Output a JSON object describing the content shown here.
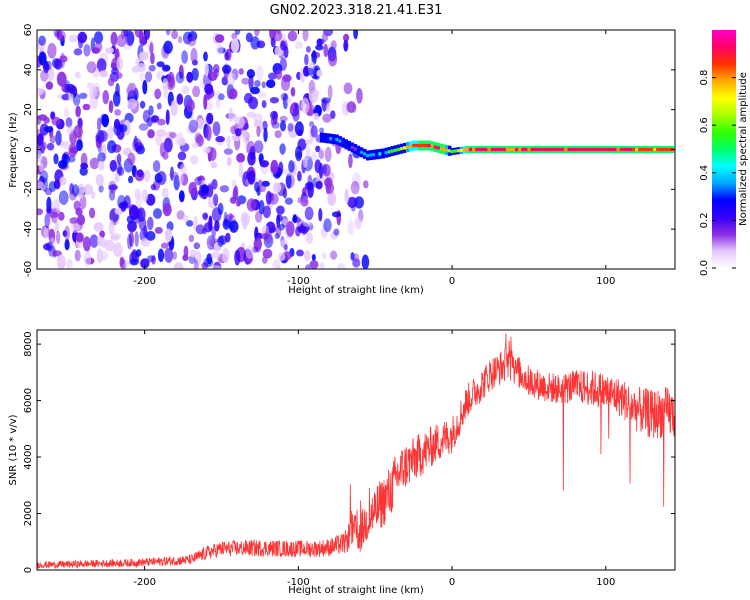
{
  "figure_title": "GN02.2023.318.21.41.E31",
  "chart_data": [
    {
      "type": "heatmap",
      "title": "GN02.2023.318.21.41.E31",
      "xlabel": "Height of straight line (km)",
      "ylabel": "Frequency (Hz)",
      "xlim": [
        -270,
        145
      ],
      "ylim": [
        -60,
        60
      ],
      "x_ticks": [
        -200,
        -100,
        0,
        100
      ],
      "y_ticks": [
        -60,
        -40,
        -20,
        0,
        20,
        40,
        60
      ],
      "colorbar": {
        "label": "Normalized spectral amplitude",
        "range": [
          0,
          1
        ],
        "ticks": [
          0.0,
          0.2,
          0.4,
          0.6,
          0.8
        ],
        "colors": [
          "#ffffff",
          "#e6c8ff",
          "#8a2be2",
          "#3300ff",
          "#0000ff",
          "#00aaff",
          "#00ffff",
          "#00ff66",
          "#33ff00",
          "#aaff00",
          "#ffff00",
          "#ffaa00",
          "#ff3300",
          "#ff0066",
          "#ff00cc"
        ]
      },
      "noise_region": {
        "x": [
          -270,
          -75
        ],
        "y": [
          -60,
          60
        ],
        "amplitude": [
          0.05,
          0.3
        ]
      },
      "signal_track": [
        {
          "x": -85,
          "y": 6,
          "amplitude": 0.3
        },
        {
          "x": -75,
          "y": 5,
          "amplitude": 0.35
        },
        {
          "x": -65,
          "y": 1,
          "amplitude": 0.3
        },
        {
          "x": -55,
          "y": -3,
          "amplitude": 0.35
        },
        {
          "x": -45,
          "y": -2,
          "amplitude": 0.45
        },
        {
          "x": -35,
          "y": 0,
          "amplitude": 0.6
        },
        {
          "x": -25,
          "y": 2,
          "amplitude": 0.85
        },
        {
          "x": -15,
          "y": 2,
          "amplitude": 0.9
        },
        {
          "x": -5,
          "y": 0,
          "amplitude": 0.9
        },
        {
          "x": 0,
          "y": -1,
          "amplitude": 0.5
        },
        {
          "x": 10,
          "y": 0,
          "amplitude": 0.9
        },
        {
          "x": 30,
          "y": 0,
          "amplitude": 0.92
        },
        {
          "x": 50,
          "y": 0,
          "amplitude": 0.92
        },
        {
          "x": 70,
          "y": 0,
          "amplitude": 0.9
        },
        {
          "x": 90,
          "y": 0,
          "amplitude": 0.9
        },
        {
          "x": 110,
          "y": 0,
          "amplitude": 0.9
        },
        {
          "x": 130,
          "y": 0,
          "amplitude": 0.88
        },
        {
          "x": 145,
          "y": 0,
          "amplitude": 0.88
        }
      ]
    },
    {
      "type": "line",
      "xlabel": "Height of straight line (km)",
      "ylabel": "SNR (10 * v/v)",
      "xlim": [
        -270,
        145
      ],
      "ylim": [
        0,
        8500
      ],
      "x_ticks": [
        -200,
        -100,
        0,
        100
      ],
      "y_ticks": [
        0,
        2000,
        4000,
        6000,
        8000
      ],
      "color": "#ff3333",
      "series": [
        {
          "x": [
            -270,
            -250,
            -230,
            -210,
            -190,
            -170,
            -160,
            -150,
            -130,
            -110,
            -90,
            -80,
            -70,
            -65,
            -60,
            -55,
            -50,
            -45,
            -40,
            -35,
            -30,
            -25,
            -20,
            -15,
            -10,
            -5,
            0,
            5,
            10,
            15,
            20,
            25,
            30,
            35,
            40,
            50,
            60,
            70,
            80,
            90,
            100,
            110,
            120,
            130,
            140,
            145
          ],
          "y": [
            180,
            200,
            230,
            250,
            300,
            360,
            600,
            750,
            780,
            760,
            750,
            800,
            950,
            1400,
            1250,
            1800,
            2100,
            2400,
            2800,
            3400,
            3700,
            3900,
            4100,
            4300,
            4500,
            4650,
            4800,
            5400,
            6000,
            6300,
            6600,
            6950,
            7100,
            7300,
            7150,
            6700,
            6500,
            6400,
            6500,
            6450,
            6300,
            6100,
            5700,
            5500,
            5600,
            5500
          ],
          "spread": [
            120,
            130,
            130,
            140,
            160,
            180,
            250,
            280,
            300,
            300,
            300,
            320,
            400,
            600,
            700,
            800,
            900,
            900,
            950,
            900,
            850,
            800,
            800,
            750,
            700,
            700,
            650,
            650,
            600,
            600,
            600,
            600,
            600,
            650,
            600,
            550,
            550,
            550,
            600,
            650,
            700,
            700,
            800,
            900,
            900,
            900
          ]
        }
      ]
    }
  ]
}
